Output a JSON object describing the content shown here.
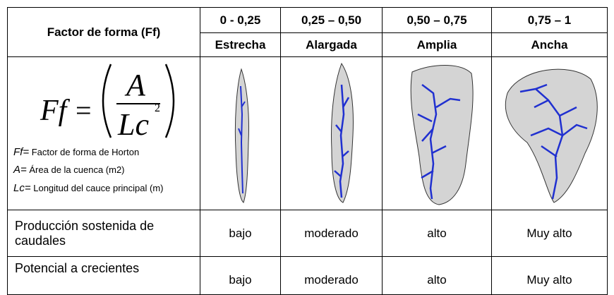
{
  "table": {
    "header": {
      "title": "Factor de forma (Ff)",
      "ranges": [
        "0 - 0,25",
        "0,25 – 0,50",
        "0,50 – 0,75",
        "0,75 – 1"
      ],
      "classes": [
        "Estrecha",
        "Alargada",
        "Amplia",
        "Ancha"
      ]
    },
    "formula": {
      "lhs": "Ff",
      "operator": "=",
      "numerator": "A",
      "denominator": "Lc",
      "exponent": "2"
    },
    "legend": [
      {
        "symbol": "Ff=",
        "text": "Factor de forma de Horton"
      },
      {
        "symbol": "A=",
        "text": "Área de la cuenca (m2)"
      },
      {
        "symbol": "Lc=",
        "text": "Longitud del cauce principal (m)"
      }
    ],
    "rows": [
      {
        "label": "Producción sostenida de caudales",
        "values": [
          "bajo",
          "moderado",
          "alto",
          "Muy alto"
        ]
      },
      {
        "label": "Potencial a crecientes",
        "values": [
          "bajo",
          "moderado",
          "alto",
          "Muy alto"
        ]
      }
    ]
  }
}
